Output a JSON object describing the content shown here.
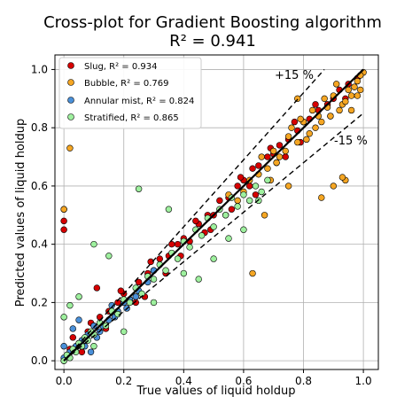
{
  "chart_data": {
    "type": "scatter",
    "title": "Cross-plot for Gradient Boosting algorithm",
    "subtitle": "R² = 0.941",
    "xlabel": "True values of liquid holdup",
    "ylabel": "Predicted values of liquid holdup",
    "xlim": [
      -0.03,
      1.05
    ],
    "ylim": [
      -0.03,
      1.05
    ],
    "xticks": [
      "0.0",
      "0.2",
      "0.4",
      "0.6",
      "0.8",
      "1.0"
    ],
    "yticks": [
      "0.0",
      "0.2",
      "0.4",
      "0.6",
      "0.8",
      "1.0"
    ],
    "grid": true,
    "legend_position": "top-left",
    "annotations": [
      {
        "text": "+15 %",
        "x": 0.755,
        "y": 0.955
      },
      {
        "text": "-15 %",
        "x": 0.96,
        "y": 0.735
      }
    ],
    "reference_lines": [
      {
        "name": "identity",
        "slope": 1.0,
        "style": "solid"
      },
      {
        "name": "+15 %",
        "slope": 1.15,
        "style": "dashed"
      },
      {
        "name": "-15 %",
        "slope": 0.85,
        "style": "dashed"
      }
    ],
    "series": [
      {
        "name": "Slug, R² = 0.934",
        "color": "#d60000",
        "x": [
          0.0,
          0.02,
          0.05,
          0.08,
          0.1,
          0.12,
          0.15,
          0.18,
          0.2,
          0.22,
          0.25,
          0.28,
          0.3,
          0.32,
          0.35,
          0.38,
          0.4,
          0.42,
          0.45,
          0.48,
          0.5,
          0.52,
          0.55,
          0.58,
          0.6,
          0.62,
          0.65,
          0.68,
          0.7,
          0.72,
          0.75,
          0.78,
          0.8,
          0.82,
          0.85,
          0.88,
          0.9,
          0.92,
          0.95,
          0.98,
          0.0,
          0.0,
          0.0,
          0.03,
          0.06,
          0.09,
          0.14,
          0.19,
          0.24,
          0.29,
          0.34,
          0.39,
          0.44,
          0.49,
          0.54,
          0.59,
          0.64,
          0.69,
          0.74,
          0.79,
          0.84,
          0.89,
          0.94,
          0.97,
          0.11,
          0.27,
          0.36,
          0.47,
          0.56,
          0.63,
          0.71,
          0.77
        ],
        "y": [
          0.0,
          0.04,
          0.06,
          0.1,
          0.12,
          0.15,
          0.17,
          0.2,
          0.23,
          0.21,
          0.27,
          0.3,
          0.31,
          0.35,
          0.36,
          0.4,
          0.42,
          0.41,
          0.47,
          0.5,
          0.5,
          0.55,
          0.56,
          0.6,
          0.62,
          0.6,
          0.67,
          0.7,
          0.71,
          0.74,
          0.76,
          0.79,
          0.82,
          0.83,
          0.86,
          0.88,
          0.9,
          0.93,
          0.95,
          0.97,
          0.52,
          0.48,
          0.45,
          0.08,
          0.03,
          0.13,
          0.11,
          0.24,
          0.2,
          0.34,
          0.3,
          0.36,
          0.48,
          0.45,
          0.5,
          0.63,
          0.57,
          0.73,
          0.7,
          0.75,
          0.88,
          0.84,
          0.9,
          0.94,
          0.25,
          0.22,
          0.4,
          0.44,
          0.52,
          0.66,
          0.68,
          0.82
        ]
      },
      {
        "name": "Bubble, R² = 0.769",
        "color": "#f5a623",
        "x": [
          0.6,
          0.62,
          0.65,
          0.68,
          0.7,
          0.72,
          0.75,
          0.78,
          0.8,
          0.82,
          0.85,
          0.88,
          0.9,
          0.92,
          0.95,
          0.98,
          1.0,
          0.66,
          0.74,
          0.79,
          0.84,
          0.87,
          0.93,
          0.97,
          0.99,
          0.71,
          0.76,
          0.83,
          0.86,
          0.91,
          0.96,
          0.99,
          0.69,
          0.81,
          0.89,
          0.94,
          0.55,
          0.58,
          0.02,
          0.0,
          0.9,
          0.94,
          0.93,
          0.86,
          0.75,
          0.63,
          0.67,
          0.78,
          0.98,
          0.96
        ],
        "y": [
          0.58,
          0.62,
          0.64,
          0.66,
          0.72,
          0.7,
          0.77,
          0.75,
          0.82,
          0.78,
          0.84,
          0.87,
          0.91,
          0.86,
          0.93,
          0.96,
          0.99,
          0.7,
          0.72,
          0.83,
          0.8,
          0.9,
          0.88,
          0.94,
          0.98,
          0.68,
          0.8,
          0.86,
          0.82,
          0.95,
          0.91,
          0.93,
          0.62,
          0.76,
          0.84,
          0.89,
          0.57,
          0.55,
          0.73,
          0.52,
          0.6,
          0.62,
          0.63,
          0.56,
          0.6,
          0.3,
          0.5,
          0.9,
          0.91,
          0.86
        ]
      },
      {
        "name": "Annular mist, R² = 0.824",
        "color": "#4a90d9",
        "x": [
          0.0,
          0.02,
          0.04,
          0.06,
          0.08,
          0.1,
          0.12,
          0.15,
          0.18,
          0.2,
          0.22,
          0.25,
          0.28,
          0.3,
          0.03,
          0.07,
          0.11,
          0.16,
          0.21,
          0.05,
          0.09,
          0.13,
          0.0,
          0.01,
          0.17,
          0.24
        ],
        "y": [
          0.01,
          0.03,
          0.05,
          0.07,
          0.09,
          0.12,
          0.1,
          0.14,
          0.17,
          0.2,
          0.21,
          0.24,
          0.27,
          0.31,
          0.11,
          0.05,
          0.08,
          0.19,
          0.18,
          0.14,
          0.03,
          0.12,
          0.05,
          0.02,
          0.15,
          0.22
        ]
      },
      {
        "name": "Stratified, R² = 0.865",
        "color": "#9ef09e",
        "x": [
          0.0,
          0.01,
          0.02,
          0.03,
          0.04,
          0.05,
          0.06,
          0.07,
          0.08,
          0.09,
          0.1,
          0.12,
          0.14,
          0.16,
          0.18,
          0.2,
          0.22,
          0.24,
          0.26,
          0.28,
          0.3,
          0.32,
          0.34,
          0.36,
          0.38,
          0.4,
          0.42,
          0.44,
          0.46,
          0.48,
          0.5,
          0.52,
          0.54,
          0.56,
          0.58,
          0.6,
          0.62,
          0.64,
          0.66,
          0.68,
          0.0,
          0.02,
          0.05,
          0.1,
          0.15,
          0.25,
          0.35,
          0.45,
          0.55,
          0.65,
          0.1,
          0.2,
          0.3,
          0.4,
          0.5,
          0.6
        ],
        "y": [
          0.0,
          0.02,
          0.01,
          0.04,
          0.03,
          0.06,
          0.05,
          0.08,
          0.07,
          0.1,
          0.09,
          0.13,
          0.12,
          0.17,
          0.16,
          0.21,
          0.2,
          0.25,
          0.23,
          0.29,
          0.28,
          0.33,
          0.31,
          0.37,
          0.35,
          0.41,
          0.39,
          0.45,
          0.43,
          0.49,
          0.46,
          0.52,
          0.5,
          0.56,
          0.53,
          0.57,
          0.55,
          0.6,
          0.58,
          0.62,
          0.15,
          0.19,
          0.22,
          0.4,
          0.36,
          0.59,
          0.52,
          0.28,
          0.42,
          0.55,
          0.05,
          0.1,
          0.2,
          0.3,
          0.35,
          0.45
        ]
      }
    ]
  }
}
